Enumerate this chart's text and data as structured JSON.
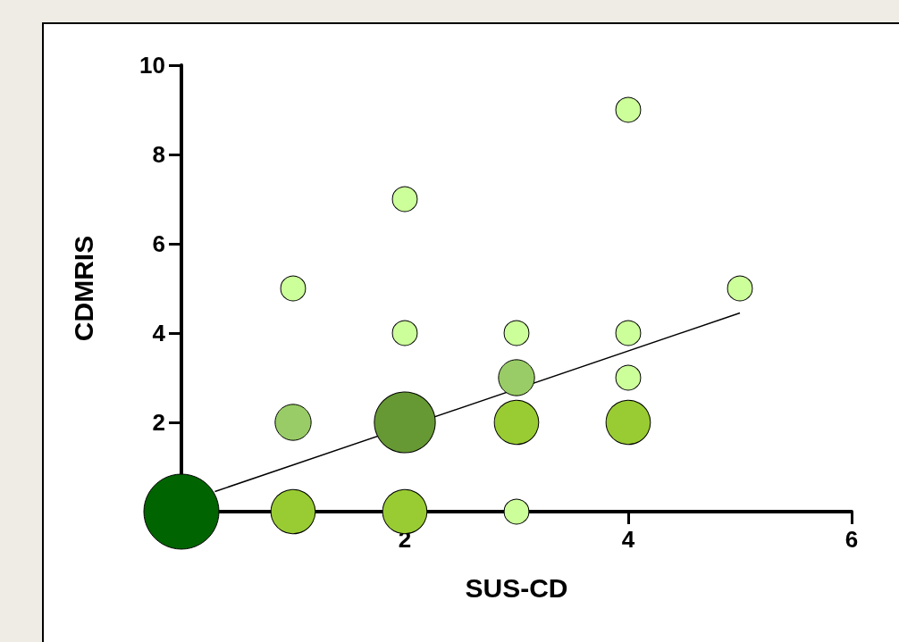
{
  "chart_data": {
    "type": "bubble",
    "xlabel": "SUS-CD",
    "ylabel": "CDMRIS",
    "xlim": [
      0,
      6
    ],
    "xticks": [
      2,
      4,
      6
    ],
    "ylim": [
      0,
      10
    ],
    "yticks": [
      2,
      4,
      6,
      8,
      10
    ],
    "grid": false,
    "marker": "circle",
    "x": [
      0,
      1,
      2,
      3,
      1,
      2,
      3,
      4,
      3,
      4,
      1,
      2,
      2,
      3,
      4,
      4,
      5
    ],
    "series": [
      {
        "values": [
          0,
          0,
          0,
          0,
          2,
          2,
          2,
          2,
          3,
          3,
          5,
          7,
          4,
          4,
          4,
          9,
          5
        ],
        "sizes": [
          1,
          0.35,
          0.35,
          0.11,
          0.23,
          0.66,
          0.35,
          0.35,
          0.23,
          0.11,
          0.11,
          0.11,
          0.11,
          0.11,
          0.11,
          0.11,
          0.11
        ],
        "colors": [
          "#006400",
          "#99cc33",
          "#99cc33",
          "#ccff99",
          "#99cc66",
          "#669933",
          "#99cc33",
          "#99cc33",
          "#99cc66",
          "#ccff99",
          "#ccff99",
          "#ccff99",
          "#ccff99",
          "#ccff99",
          "#ccff99",
          "#ccff99",
          "#ccff99"
        ]
      },
      {
        "type": "line",
        "x": [
          0.3,
          5
        ],
        "values": [
          0.45,
          4.45
        ],
        "color": "#000000",
        "marker": "none",
        "line_style": "solid"
      }
    ]
  }
}
